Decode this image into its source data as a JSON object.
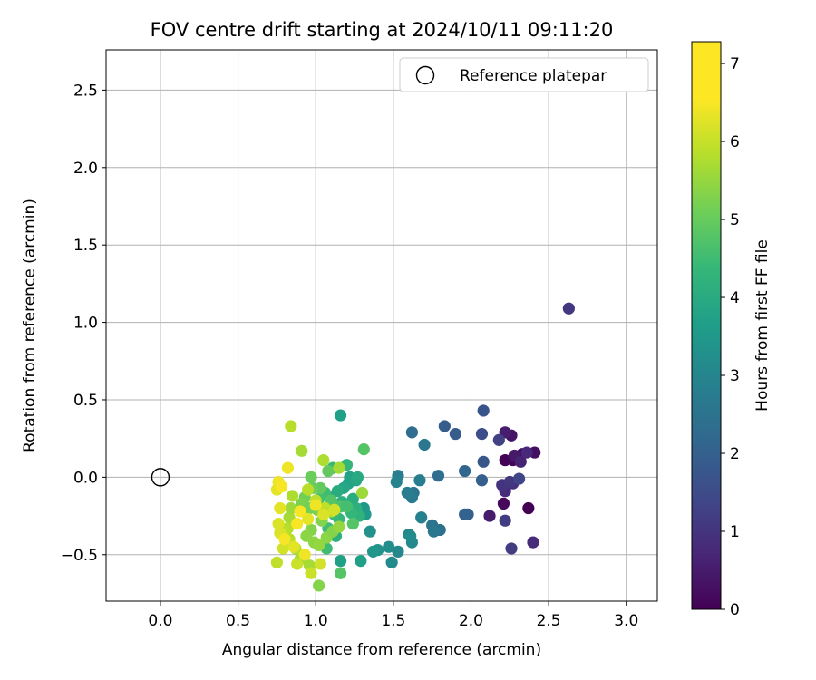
{
  "chart_data": {
    "type": "scatter",
    "title": "FOV centre drift starting at 2024/10/11 09:11:20",
    "xlabel": "Angular distance from reference (arcmin)",
    "ylabel": "Rotation from reference (arcmin)",
    "xlim": [
      -0.35,
      3.2
    ],
    "ylim": [
      -0.8,
      2.76
    ],
    "xticks": [
      0.0,
      0.5,
      1.0,
      1.5,
      2.0,
      2.5,
      3.0
    ],
    "xtick_labels": [
      "0.0",
      "0.5",
      "1.0",
      "1.5",
      "2.0",
      "2.5",
      "3.0"
    ],
    "yticks": [
      -0.5,
      0.0,
      0.5,
      1.0,
      1.5,
      2.0,
      2.5
    ],
    "ytick_labels": [
      "−0.5",
      "0.0",
      "0.5",
      "1.0",
      "1.5",
      "2.0",
      "2.5"
    ],
    "grid": true,
    "legend": {
      "position": "top-right",
      "entries": [
        "Reference platepar"
      ]
    },
    "reference_point": {
      "x": 0.0,
      "y": 0.0,
      "label": "Reference platepar"
    },
    "colorbar": {
      "label": "Hours from first FF file",
      "min": 0,
      "max": 7.28,
      "ticks": [
        0,
        1,
        2,
        3,
        4,
        5,
        6,
        7
      ],
      "tick_labels": [
        "0",
        "1",
        "2",
        "3",
        "4",
        "5",
        "6",
        "7"
      ],
      "colormap": "viridis"
    },
    "series": [
      {
        "points": [
          [
            2.37,
            -0.2,
            0.02
          ],
          [
            2.22,
            0.11,
            0.05
          ],
          [
            2.27,
            0.11,
            0.1
          ],
          [
            2.33,
            0.15,
            0.2
          ],
          [
            2.41,
            0.16,
            0.3
          ],
          [
            2.21,
            -0.17,
            0.15
          ],
          [
            2.26,
            0.27,
            0.4
          ],
          [
            2.22,
            0.29,
            0.6
          ],
          [
            2.28,
            0.14,
            0.5
          ],
          [
            2.32,
            0.1,
            0.7
          ],
          [
            2.36,
            0.16,
            0.8
          ],
          [
            2.12,
            -0.25,
            0.55
          ],
          [
            2.4,
            -0.42,
            0.9
          ],
          [
            2.22,
            -0.09,
            0.9
          ],
          [
            2.27,
            -0.04,
            1.0
          ],
          [
            2.2,
            -0.05,
            1.1
          ],
          [
            2.22,
            -0.28,
            1.3
          ],
          [
            2.26,
            -0.46,
            1.3
          ],
          [
            2.25,
            -0.03,
            1.2
          ],
          [
            2.31,
            -0.01,
            1.5
          ],
          [
            2.18,
            0.24,
            1.4
          ],
          [
            2.63,
            1.09,
            1.2
          ],
          [
            2.08,
            0.43,
            1.9
          ],
          [
            2.07,
            0.28,
            1.7
          ],
          [
            2.08,
            0.1,
            2.0
          ],
          [
            1.98,
            -0.24,
            2.2
          ],
          [
            1.96,
            -0.24,
            2.3
          ],
          [
            2.07,
            -0.02,
            2.2
          ],
          [
            1.96,
            0.04,
            2.4
          ],
          [
            1.9,
            0.28,
            2.1
          ],
          [
            1.83,
            0.33,
            2.1
          ],
          [
            1.79,
            0.01,
            2.6
          ],
          [
            1.75,
            -0.31,
            2.8
          ],
          [
            1.8,
            -0.34,
            2.7
          ],
          [
            1.76,
            -0.35,
            2.9
          ],
          [
            1.62,
            0.29,
            2.6
          ],
          [
            1.7,
            0.21,
            2.9
          ],
          [
            1.63,
            -0.1,
            2.8
          ],
          [
            1.62,
            -0.13,
            3.0
          ],
          [
            1.59,
            -0.1,
            3.1
          ],
          [
            1.67,
            -0.02,
            3.1
          ],
          [
            1.53,
            0.01,
            3.1
          ],
          [
            1.52,
            -0.03,
            3.3
          ],
          [
            1.68,
            -0.26,
            3.2
          ],
          [
            1.6,
            -0.37,
            3.3
          ],
          [
            1.62,
            -0.42,
            3.4
          ],
          [
            1.61,
            -0.38,
            3.5
          ],
          [
            1.53,
            -0.48,
            3.4
          ],
          [
            1.49,
            -0.55,
            3.5
          ],
          [
            1.47,
            -0.45,
            3.6
          ],
          [
            1.4,
            -0.47,
            3.7
          ],
          [
            1.37,
            -0.48,
            3.8
          ],
          [
            1.35,
            -0.35,
            3.7
          ],
          [
            1.32,
            -0.24,
            4.0
          ],
          [
            1.31,
            -0.2,
            3.9
          ],
          [
            1.29,
            -0.54,
            4.1
          ],
          [
            1.16,
            -0.54,
            4.1
          ],
          [
            1.16,
            0.4,
            4.1
          ],
          [
            1.21,
            -0.04,
            4.2
          ],
          [
            1.22,
            0.0,
            4.2
          ],
          [
            1.26,
            -0.02,
            4.3
          ],
          [
            1.27,
            0.0,
            4.4
          ],
          [
            1.18,
            -0.07,
            4.3
          ],
          [
            1.14,
            -0.09,
            4.5
          ],
          [
            1.09,
            -0.13,
            4.4
          ],
          [
            1.17,
            -0.16,
            4.6
          ],
          [
            1.24,
            -0.14,
            4.5
          ],
          [
            1.26,
            -0.2,
            4.6
          ],
          [
            1.28,
            -0.25,
            4.7
          ],
          [
            1.23,
            -0.23,
            4.8
          ],
          [
            1.15,
            -0.27,
            4.8
          ],
          [
            1.12,
            -0.24,
            4.9
          ],
          [
            1.08,
            -0.33,
            5.0
          ],
          [
            1.2,
            0.08,
            4.8
          ],
          [
            1.11,
            0.06,
            4.9
          ],
          [
            1.06,
            -0.1,
            5.0
          ],
          [
            1.02,
            -0.14,
            5.1
          ],
          [
            1.13,
            -0.38,
            4.6
          ],
          [
            1.07,
            -0.46,
            5.0
          ],
          [
            1.16,
            -0.62,
            5.3
          ],
          [
            1.24,
            -0.3,
            5.3
          ],
          [
            1.16,
            -0.19,
            5.2
          ],
          [
            1.2,
            -0.19,
            5.1
          ],
          [
            1.1,
            -0.15,
            5.3
          ],
          [
            1.31,
            0.18,
            5.3
          ],
          [
            1.08,
            0.04,
            5.5
          ],
          [
            1.03,
            -0.07,
            5.5
          ],
          [
            0.98,
            -0.07,
            5.6
          ],
          [
            0.97,
            0.0,
            5.6
          ],
          [
            0.93,
            -0.13,
            5.7
          ],
          [
            0.91,
            -0.17,
            5.8
          ],
          [
            0.96,
            -0.2,
            5.7
          ],
          [
            1.01,
            -0.21,
            5.8
          ],
          [
            1.04,
            -0.28,
            5.9
          ],
          [
            0.97,
            -0.34,
            5.9
          ],
          [
            0.94,
            -0.38,
            6.0
          ],
          [
            0.99,
            -0.42,
            6.0
          ],
          [
            1.02,
            -0.44,
            6.1
          ],
          [
            1.07,
            -0.39,
            6.0
          ],
          [
            1.11,
            -0.35,
            5.9
          ],
          [
            1.15,
            -0.32,
            6.1
          ],
          [
            1.02,
            -0.7,
            5.9
          ],
          [
            0.96,
            -0.57,
            6.3
          ],
          [
            0.9,
            -0.53,
            6.3
          ],
          [
            0.87,
            -0.46,
            6.4
          ],
          [
            0.83,
            -0.4,
            6.5
          ],
          [
            0.82,
            -0.33,
            6.5
          ],
          [
            0.83,
            -0.26,
            6.3
          ],
          [
            0.84,
            -0.2,
            6.2
          ],
          [
            0.85,
            -0.12,
            6.4
          ],
          [
            0.91,
            0.17,
            6.3
          ],
          [
            0.84,
            0.33,
            6.5
          ],
          [
            1.05,
            0.11,
            6.4
          ],
          [
            1.15,
            0.06,
            6.3
          ],
          [
            1.3,
            -0.1,
            6.2
          ],
          [
            0.95,
            -0.08,
            6.5
          ],
          [
            1.0,
            -0.15,
            6.6
          ],
          [
            1.06,
            -0.2,
            6.6
          ],
          [
            1.1,
            -0.22,
            6.5
          ],
          [
            0.75,
            -0.55,
            6.6
          ],
          [
            0.88,
            -0.56,
            6.7
          ],
          [
            0.97,
            -0.62,
            6.7
          ],
          [
            1.03,
            -0.56,
            6.8
          ],
          [
            0.79,
            -0.46,
            6.8
          ],
          [
            0.77,
            -0.36,
            6.9
          ],
          [
            0.76,
            -0.3,
            6.9
          ],
          [
            0.77,
            -0.2,
            7.0
          ],
          [
            0.75,
            -0.08,
            7.0
          ],
          [
            0.76,
            -0.03,
            7.1
          ],
          [
            0.82,
            0.06,
            7.1
          ],
          [
            0.88,
            -0.3,
            7.2
          ],
          [
            0.9,
            -0.22,
            7.2
          ],
          [
            1.0,
            -0.18,
            7.1
          ],
          [
            0.86,
            -0.45,
            7.0
          ],
          [
            0.93,
            -0.5,
            7.1
          ],
          [
            0.78,
            -0.06,
            7.2
          ],
          [
            0.8,
            -0.4,
            7.2
          ],
          [
            1.05,
            -0.24,
            6.9
          ],
          [
            1.12,
            -0.21,
            6.8
          ],
          [
            0.95,
            -0.27,
            7.0
          ]
        ]
      }
    ]
  }
}
